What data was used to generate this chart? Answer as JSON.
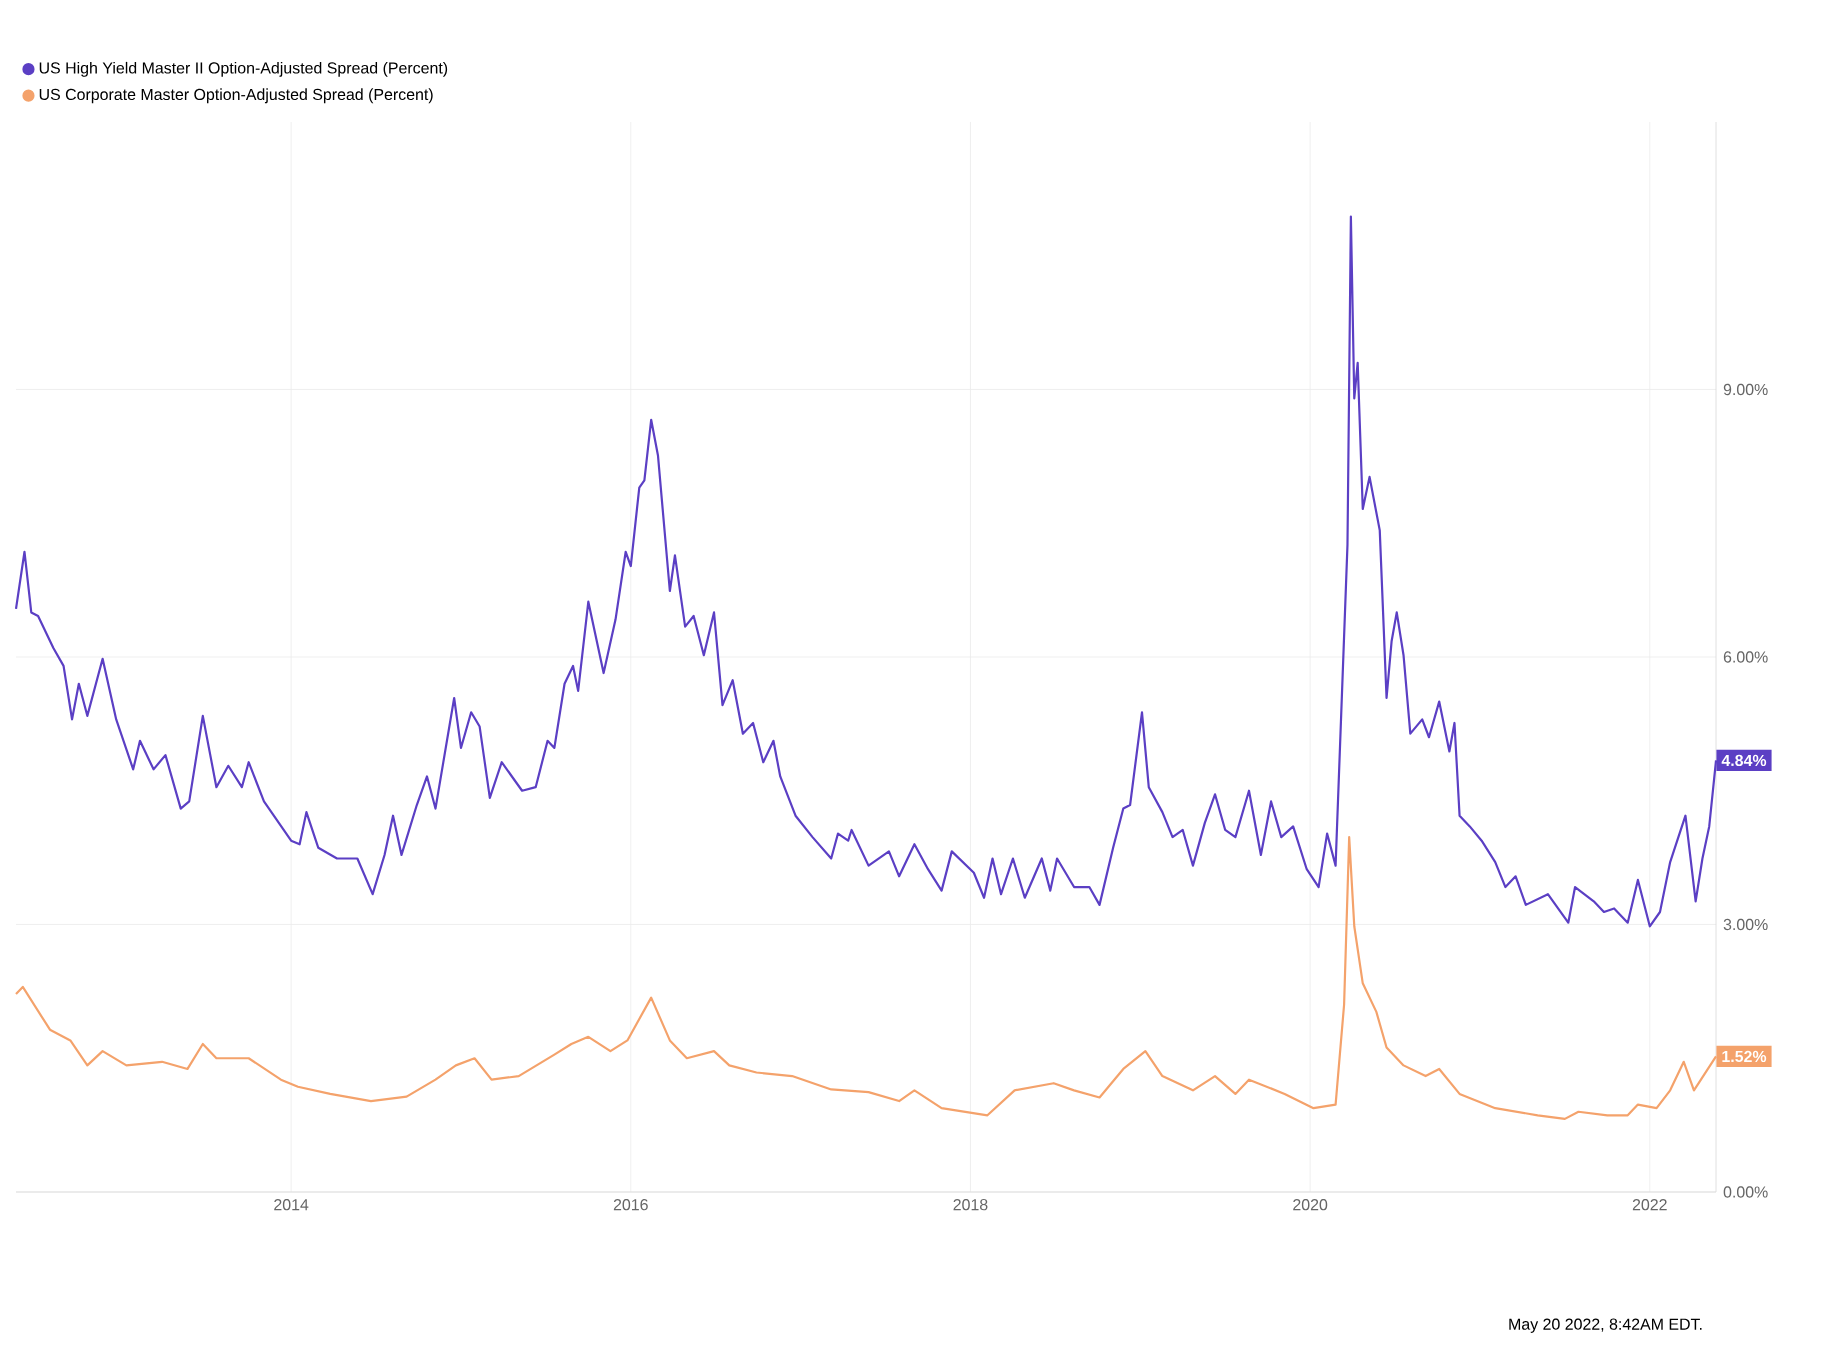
{
  "chart_data": {
    "type": "line",
    "annotations": [
      "May 20 2022, 8:42AM EDT."
    ],
    "xlim": [
      2012.38,
      2022.39
    ],
    "xticks": [
      2014,
      2016,
      2018,
      2020,
      2022
    ],
    "ylim": [
      0,
      12
    ],
    "yticks": [
      {
        "value": 0,
        "label": "0.00%"
      },
      {
        "value": 3,
        "label": "3.00%"
      },
      {
        "value": 6,
        "label": "6.00%"
      },
      {
        "value": 9,
        "label": "9.00%"
      }
    ],
    "grid": true,
    "legend": "top left",
    "marker": "none",
    "line_style": "solid",
    "series": [
      {
        "name": "US High Yield Master II Option-Adjusted Spread (Percent)",
        "color": "#5b3fc4",
        "x": [
          2012.38,
          2012.43,
          2012.47,
          2012.51,
          2012.6,
          2012.66,
          2012.71,
          2012.75,
          2012.8,
          2012.89,
          2012.97,
          2013.07,
          2013.11,
          2013.19,
          2013.26,
          2013.35,
          2013.4,
          2013.48,
          2013.56,
          2013.63,
          2013.71,
          2013.75,
          2013.84,
          2014.0,
          2014.05,
          2014.09,
          2014.16,
          2014.27,
          2014.39,
          2014.48,
          2014.55,
          2014.6,
          2014.65,
          2014.74,
          2014.8,
          2014.85,
          2014.96,
          2015.0,
          2015.06,
          2015.11,
          2015.17,
          2015.24,
          2015.36,
          2015.44,
          2015.51,
          2015.55,
          2015.61,
          2015.66,
          2015.69,
          2015.75,
          2015.84,
          2015.91,
          2015.97,
          2016.0,
          2016.05,
          2016.08,
          2016.12,
          2016.16,
          2016.23,
          2016.26,
          2016.32,
          2016.37,
          2016.43,
          2016.49,
          2016.54,
          2016.6,
          2016.66,
          2016.72,
          2016.78,
          2016.84,
          2016.88,
          2016.97,
          2017.07,
          2017.18,
          2017.22,
          2017.28,
          2017.3,
          2017.4,
          2017.52,
          2017.58,
          2017.67,
          2017.75,
          2017.83,
          2017.89,
          2018.02,
          2018.08,
          2018.13,
          2018.18,
          2018.25,
          2018.32,
          2018.42,
          2018.47,
          2018.51,
          2018.61,
          2018.7,
          2018.76,
          2018.84,
          2018.9,
          2018.94,
          2019.01,
          2019.05,
          2019.13,
          2019.19,
          2019.25,
          2019.31,
          2019.38,
          2019.44,
          2019.5,
          2019.56,
          2019.64,
          2019.71,
          2019.77,
          2019.83,
          2019.9,
          2019.98,
          2020.05,
          2020.1,
          2020.15,
          2020.22,
          2020.24,
          2020.26,
          2020.28,
          2020.31,
          2020.35,
          2020.41,
          2020.45,
          2020.48,
          2020.51,
          2020.55,
          2020.59,
          2020.66,
          2020.7,
          2020.76,
          2020.82,
          2020.85,
          2020.88,
          2020.94,
          2021.01,
          2021.09,
          2021.15,
          2021.21,
          2021.27,
          2021.4,
          2021.52,
          2021.56,
          2021.67,
          2021.73,
          2021.79,
          2021.87,
          2021.93,
          2022.0,
          2022.06,
          2022.12,
          2022.21,
          2022.27,
          2022.31,
          2022.35,
          2022.39
        ],
        "values": [
          6.54,
          7.18,
          6.5,
          6.46,
          6.1,
          5.9,
          5.3,
          5.7,
          5.34,
          5.98,
          5.3,
          4.74,
          5.06,
          4.74,
          4.9,
          4.3,
          4.38,
          5.34,
          4.54,
          4.78,
          4.54,
          4.82,
          4.38,
          3.94,
          3.9,
          4.26,
          3.86,
          3.74,
          3.74,
          3.34,
          3.78,
          4.22,
          3.78,
          4.34,
          4.66,
          4.3,
          5.54,
          4.98,
          5.38,
          5.22,
          4.42,
          4.82,
          4.5,
          4.54,
          5.06,
          4.98,
          5.7,
          5.9,
          5.62,
          6.62,
          5.82,
          6.42,
          7.18,
          7.02,
          7.9,
          7.98,
          8.66,
          8.26,
          6.74,
          7.14,
          6.34,
          6.46,
          6.02,
          6.5,
          5.46,
          5.74,
          5.14,
          5.26,
          4.82,
          5.06,
          4.66,
          4.22,
          3.98,
          3.74,
          4.02,
          3.94,
          4.06,
          3.66,
          3.82,
          3.54,
          3.9,
          3.62,
          3.38,
          3.82,
          3.58,
          3.3,
          3.74,
          3.34,
          3.74,
          3.3,
          3.74,
          3.38,
          3.74,
          3.42,
          3.42,
          3.22,
          3.86,
          4.3,
          4.34,
          5.38,
          4.54,
          4.26,
          3.98,
          4.06,
          3.66,
          4.14,
          4.46,
          4.06,
          3.98,
          4.5,
          3.78,
          4.38,
          3.98,
          4.1,
          3.62,
          3.42,
          4.02,
          3.66,
          7.26,
          10.94,
          8.9,
          9.3,
          7.66,
          8.02,
          7.42,
          5.54,
          6.18,
          6.5,
          6.02,
          5.14,
          5.3,
          5.1,
          5.5,
          4.94,
          5.26,
          4.22,
          4.1,
          3.94,
          3.7,
          3.42,
          3.54,
          3.22,
          3.34,
          3.02,
          3.42,
          3.26,
          3.14,
          3.18,
          3.02,
          3.5,
          2.98,
          3.14,
          3.7,
          4.22,
          3.26,
          3.74,
          4.1,
          4.84
        ],
        "value_labels": [
          null,
          null,
          null,
          null,
          null,
          null,
          null,
          null,
          null,
          null,
          null,
          null,
          null,
          null,
          null,
          null,
          null,
          null,
          null,
          null,
          null,
          null,
          null,
          null,
          null,
          null,
          null,
          null,
          null,
          null,
          null,
          null,
          null,
          null,
          null,
          null,
          null,
          null,
          null,
          null,
          null,
          null,
          null,
          null,
          null,
          null,
          null,
          null,
          null,
          null,
          null,
          null,
          null,
          null,
          null,
          null,
          null,
          null,
          null,
          null,
          null,
          null,
          null,
          null,
          null,
          null,
          null,
          null,
          null,
          null,
          null,
          null,
          null,
          null,
          null,
          null,
          null,
          null,
          null,
          null,
          null,
          null,
          null,
          null,
          null,
          null,
          null,
          null,
          null,
          null,
          null,
          null,
          null,
          null,
          null,
          null,
          null,
          null,
          null,
          null,
          null,
          null,
          null,
          null,
          null,
          null,
          null,
          null,
          null,
          null,
          null,
          null,
          null,
          null,
          null,
          null,
          null,
          null,
          null,
          null,
          null,
          null,
          null,
          null,
          null,
          null,
          null,
          null,
          null,
          null,
          null,
          null,
          null,
          null,
          null,
          null,
          null,
          null,
          null,
          null,
          null,
          null,
          null,
          null,
          null,
          null,
          null,
          null,
          null,
          null,
          null,
          null,
          null,
          null,
          null,
          null,
          null,
          "4.84%"
        ]
      },
      {
        "name": "US Corporate Master Option-Adjusted Spread (Percent)",
        "color": "#f4a26b",
        "x": [
          2012.38,
          2012.42,
          2012.58,
          2012.7,
          2012.8,
          2012.89,
          2013.03,
          2013.24,
          2013.39,
          2013.48,
          2013.56,
          2013.75,
          2013.94,
          2014.04,
          2014.23,
          2014.47,
          2014.68,
          2014.85,
          2014.97,
          2015.08,
          2015.18,
          2015.34,
          2015.55,
          2015.65,
          2015.75,
          2015.88,
          2015.98,
          2016.12,
          2016.23,
          2016.33,
          2016.49,
          2016.58,
          2016.74,
          2016.95,
          2017.18,
          2017.4,
          2017.58,
          2017.67,
          2017.83,
          2018.1,
          2018.26,
          2018.49,
          2018.61,
          2018.76,
          2018.9,
          2019.03,
          2019.13,
          2019.31,
          2019.44,
          2019.56,
          2019.64,
          2019.85,
          2020.02,
          2020.15,
          2020.2,
          2020.23,
          2020.26,
          2020.31,
          2020.39,
          2020.45,
          2020.55,
          2020.68,
          2020.76,
          2020.88,
          2021.09,
          2021.34,
          2021.5,
          2021.58,
          2021.75,
          2021.87,
          2021.93,
          2022.04,
          2022.12,
          2022.2,
          2022.26,
          2022.39
        ],
        "values": [
          2.22,
          2.3,
          1.82,
          1.7,
          1.42,
          1.58,
          1.42,
          1.46,
          1.38,
          1.66,
          1.5,
          1.5,
          1.26,
          1.18,
          1.1,
          1.02,
          1.07,
          1.26,
          1.42,
          1.5,
          1.26,
          1.3,
          1.54,
          1.66,
          1.74,
          1.58,
          1.7,
          2.18,
          1.7,
          1.5,
          1.58,
          1.42,
          1.34,
          1.3,
          1.15,
          1.12,
          1.02,
          1.14,
          0.94,
          0.86,
          1.14,
          1.22,
          1.14,
          1.06,
          1.38,
          1.58,
          1.3,
          1.14,
          1.3,
          1.1,
          1.26,
          1.1,
          0.94,
          0.98,
          2.1,
          3.98,
          2.98,
          2.34,
          2.02,
          1.62,
          1.42,
          1.3,
          1.38,
          1.1,
          0.94,
          0.86,
          0.82,
          0.9,
          0.86,
          0.86,
          0.98,
          0.94,
          1.14,
          1.46,
          1.14,
          1.52
        ],
        "value_labels": [
          null,
          null,
          null,
          null,
          null,
          null,
          null,
          null,
          null,
          null,
          null,
          null,
          null,
          null,
          null,
          null,
          null,
          null,
          null,
          null,
          null,
          null,
          null,
          null,
          null,
          null,
          null,
          null,
          null,
          null,
          null,
          null,
          null,
          null,
          null,
          null,
          null,
          null,
          null,
          null,
          null,
          null,
          null,
          null,
          null,
          null,
          null,
          null,
          null,
          null,
          null,
          null,
          null,
          null,
          null,
          null,
          null,
          null,
          null,
          null,
          null,
          null,
          null,
          null,
          null,
          null,
          null,
          null,
          null,
          null,
          null,
          null,
          null,
          null,
          null,
          "1.52%"
        ]
      }
    ]
  }
}
